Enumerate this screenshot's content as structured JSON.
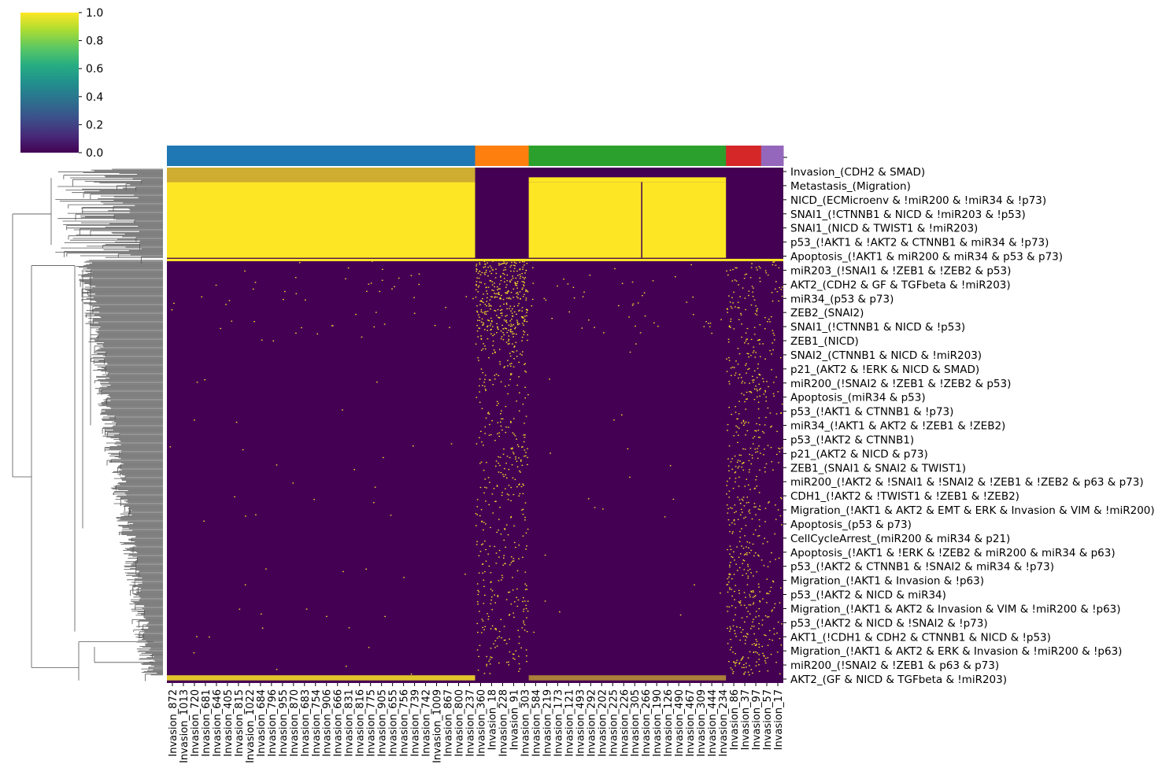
{
  "chart_data": {
    "type": "heatmap",
    "title": "",
    "colorbar": {
      "colormap": "viridis",
      "range": [
        0.0,
        1.0
      ],
      "ticks": [
        "0.0",
        "0.2",
        "0.4",
        "0.6",
        "0.8",
        "1.0"
      ],
      "colors": [
        "#440154",
        "#472c7a",
        "#3b518b",
        "#2c718e",
        "#21908d",
        "#27ad81",
        "#5cc863",
        "#aadc32",
        "#fde725"
      ]
    },
    "column_clusters": [
      {
        "color": "#1f77b4",
        "fraction": 0.5
      },
      {
        "color": "#ff7f0e",
        "fraction": 0.087
      },
      {
        "color": "#2ca02c",
        "fraction": 0.32
      },
      {
        "color": "#d62728",
        "fraction": 0.057
      },
      {
        "color": "#9467bd",
        "fraction": 0.036
      }
    ],
    "column_labels": [
      "Invasion_872",
      "Invasion_1013",
      "Invasion_720",
      "Invasion_681",
      "Invasion_646",
      "Invasion_405",
      "Invasion_815",
      "Invasion_1022",
      "Invasion_684",
      "Invasion_796",
      "Invasion_955",
      "Invasion_870",
      "Invasion_683",
      "Invasion_754",
      "Invasion_906",
      "Invasion_666",
      "Invasion_831",
      "Invasion_816",
      "Invasion_775",
      "Invasion_905",
      "Invasion_655",
      "Invasion_756",
      "Invasion_739",
      "Invasion_742",
      "Invasion_1009",
      "Invasion_867",
      "Invasion_800",
      "Invasion_237",
      "Invasion_360",
      "Invasion_18",
      "Invasion_228",
      "Invasion_91",
      "Invasion_303",
      "Invasion_584",
      "Invasion_219",
      "Invasion_173",
      "Invasion_121",
      "Invasion_493",
      "Invasion_292",
      "Invasion_202",
      "Invasion_225",
      "Invasion_226",
      "Invasion_305",
      "Invasion_266",
      "Invasion_190",
      "Invasion_126",
      "Invasion_490",
      "Invasion_467",
      "Invasion_309",
      "Invasion_444",
      "Invasion_234",
      "Invasion_86",
      "Invasion_37",
      "Invasion_97",
      "Invasion_57",
      "Invasion_17"
    ],
    "row_labels": [
      "Invasion_(CDH2 & SMAD)",
      "Metastasis_(Migration)",
      "NICD_(ECMicroenv & !miR200 & !miR34 & !p73)",
      "SNAI1_(!CTNNB1 & NICD & !miR203 & !p53)",
      "SNAI1_(NICD & TWIST1 & !miR203)",
      "p53_(!AKT1 & !AKT2 & CTNNB1 & miR34 & !p73)",
      "Apoptosis_(!AKT1 & miR200 & miR34 & p53 & p73)",
      "miR203_(!SNAI1 & !ZEB1 & !ZEB2 & p53)",
      "AKT2_(CDH2 & GF & TGFbeta & !miR203)",
      "miR34_(p53 & p73)",
      "ZEB2_(SNAI2)",
      "SNAI1_(!CTNNB1 & NICD & !p53)",
      "ZEB1_(NICD)",
      "SNAI2_(CTNNB1 & NICD & !miR203)",
      "p21_(AKT2 & !ERK & NICD & SMAD)",
      "miR200_(!SNAI2 & !ZEB1 & !ZEB2 & p53)",
      "Apoptosis_(miR34 & p53)",
      "p53_(!AKT1 & CTNNB1 & !p73)",
      "miR34_(!AKT1 & AKT2 & !ZEB1 & !ZEB2)",
      "p53_(!AKT2 & CTNNB1)",
      "p21_(AKT2 & NICD & p73)",
      "ZEB1_(SNAI1 & SNAI2 & TWIST1)",
      "miR200_(!AKT2 & !SNAI1 & !SNAI2 & !ZEB1 & !ZEB2 & p63 & p73)",
      "CDH1_(!AKT2 & !TWIST1 & !ZEB1 & !ZEB2)",
      "Migration_(!AKT1 & AKT2 & EMT & ERK & Invasion & VIM & !miR200)",
      "Apoptosis_(p53 & p73)",
      "CellCycleArrest_(miR200 & miR34 & p21)",
      "Apoptosis_(!AKT1 & !ERK & !ZEB2 & miR200 & miR34 & p63)",
      "p53_(!AKT2 & CTNNB1 & !SNAI2 & miR34 & !p73)",
      "Migration_(!AKT1 & Invasion & !p63)",
      "p53_(!AKT2 & NICD & miR34)",
      "Migration_(!AKT1 & AKT2 & Invasion & VIM & !miR200 & !p63)",
      "p53_(!AKT2 & NICD & !SNAI2 & !p73)",
      "AKT1_(!CDH1 & CDH2 & CTNNB1 & NICD & !p53)",
      "Migration_(!AKT1 & AKT2 & ERK & Invasion & !miR200 & !p63)",
      "miR200_(!SNAI2 & !ZEB1 & p63 & p73)",
      "AKT2_(GF & NICD & TGFbeta & !miR203)"
    ],
    "row_bands": {
      "top_mixed": [
        0.0,
        0.028
      ],
      "upper_block": [
        0.028,
        0.175
      ],
      "bright_line": 0.177,
      "sparse_band": [
        0.18,
        0.33
      ],
      "bottom_line": [
        0.985,
        0.995
      ]
    },
    "block_pattern": {
      "upper_block_on": [
        true,
        false,
        true,
        false,
        false
      ],
      "sparse_density": [
        0.004,
        0.16,
        0.006,
        0.05,
        0.03
      ],
      "lower_density": [
        0.0008,
        0.045,
        0.0006,
        0.07,
        0.03
      ]
    }
  }
}
